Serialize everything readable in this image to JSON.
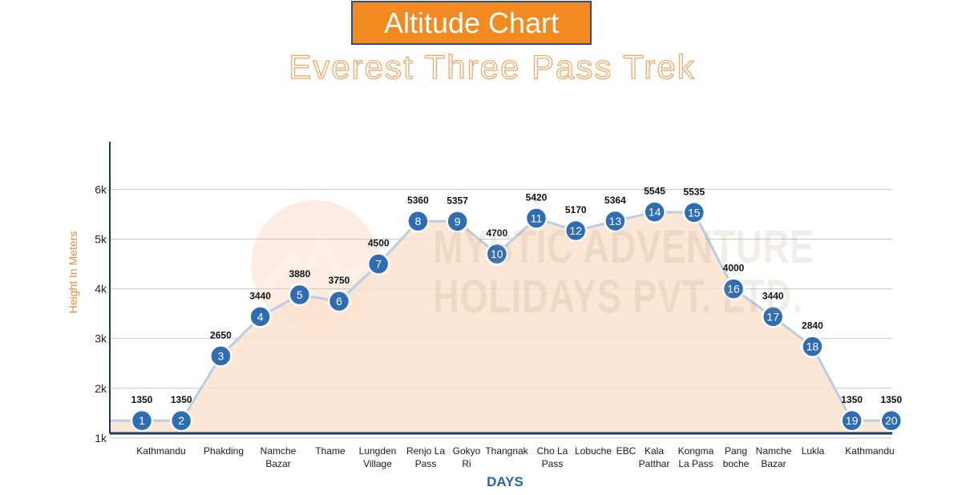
{
  "header": {
    "title": "Altitude Chart",
    "subtitle": "Everest Three Pass Trek"
  },
  "watermark": {
    "line1": "MYSTIC ADVENTURE",
    "line2": "HOLIDAYS PVT. LTD."
  },
  "colors": {
    "title_bg": "#f28a1f",
    "title_border": "#2d4f85",
    "area_fill": "#fbe3cf",
    "line": "#b9cde3",
    "marker_fill": "#2f6db3",
    "marker_stroke": "#ffffff",
    "axis": "#1f3864",
    "grid": "#c9c9c9",
    "xlabel_color": "#2a63a8",
    "ylabel_color": "#f08a3a"
  },
  "chart_data": {
    "type": "area",
    "title": "Altitude Chart",
    "subtitle": "Everest Three Pass Trek",
    "xlabel": "DAYS",
    "ylabel": "Height In Meters",
    "ylim": [
      0,
      6000
    ],
    "yticks": [
      {
        "value": 1000,
        "label": "1k"
      },
      {
        "value": 2000,
        "label": "2k"
      },
      {
        "value": 3000,
        "label": "3k"
      },
      {
        "value": 4000,
        "label": "4k"
      },
      {
        "value": 5000,
        "label": "5k"
      },
      {
        "value": 6000,
        "label": "6k"
      }
    ],
    "grid": true,
    "legend": "none",
    "points": [
      {
        "day": 1,
        "altitude": 1350
      },
      {
        "day": 2,
        "altitude": 1350
      },
      {
        "day": 3,
        "altitude": 2650
      },
      {
        "day": 4,
        "altitude": 3440
      },
      {
        "day": 5,
        "altitude": 3880
      },
      {
        "day": 6,
        "altitude": 3750
      },
      {
        "day": 7,
        "altitude": 4500
      },
      {
        "day": 8,
        "altitude": 5360
      },
      {
        "day": 9,
        "altitude": 5357
      },
      {
        "day": 10,
        "altitude": 4700
      },
      {
        "day": 11,
        "altitude": 5420
      },
      {
        "day": 12,
        "altitude": 5170
      },
      {
        "day": 13,
        "altitude": 5364
      },
      {
        "day": 14,
        "altitude": 5545
      },
      {
        "day": 15,
        "altitude": 5535
      },
      {
        "day": 16,
        "altitude": 4000
      },
      {
        "day": 17,
        "altitude": 3440
      },
      {
        "day": 18,
        "altitude": 2840
      },
      {
        "day": 19,
        "altitude": 1350
      },
      {
        "day": 20,
        "altitude": 1350
      }
    ],
    "categories": [
      "Kathmandu",
      "Phakding",
      "Namche\nBazar",
      "Thame",
      "Lungden\nVillage",
      "Renjo La\nPass",
      "Gokyo\nRi",
      "Thangnak",
      "Cho La\nPass",
      "Lobuche",
      "EBC",
      "Kala\nPatthar",
      "Kongma\nLa Pass",
      "Pang\nboche",
      "Namche\nBazar",
      "Lukla",
      "Kathmandu"
    ]
  }
}
